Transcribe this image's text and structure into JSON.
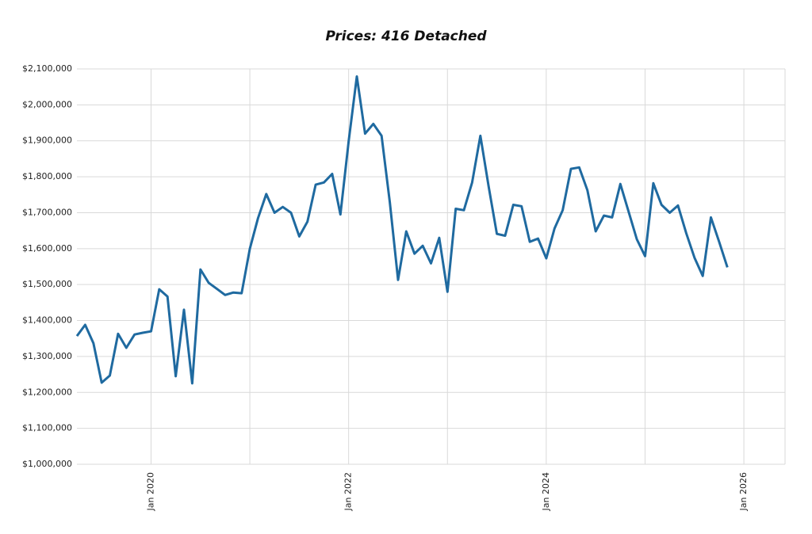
{
  "chart_data": {
    "type": "line",
    "title": "Prices: 416 Detached",
    "x": [
      "2019-04",
      "2019-05",
      "2019-06",
      "2019-07",
      "2019-08",
      "2019-09",
      "2019-10",
      "2019-11",
      "2019-12",
      "2020-01",
      "2020-02",
      "2020-03",
      "2020-04",
      "2020-05",
      "2020-06",
      "2020-07",
      "2020-08",
      "2020-09",
      "2020-10",
      "2020-11",
      "2020-12",
      "2021-01",
      "2021-02",
      "2021-03",
      "2021-04",
      "2021-05",
      "2021-06",
      "2021-07",
      "2021-08",
      "2021-09",
      "2021-10",
      "2021-11",
      "2021-12",
      "2022-01",
      "2022-02",
      "2022-03",
      "2022-04",
      "2022-05",
      "2022-06",
      "2022-07",
      "2022-08",
      "2022-09",
      "2022-10",
      "2022-11",
      "2022-12",
      "2023-01",
      "2023-02",
      "2023-03",
      "2023-04",
      "2023-05",
      "2023-06",
      "2023-07",
      "2023-08",
      "2023-09",
      "2023-10",
      "2023-11",
      "2023-12",
      "2024-01",
      "2024-02",
      "2024-03",
      "2024-04",
      "2024-05",
      "2024-06",
      "2024-07",
      "2024-08",
      "2024-09",
      "2024-10",
      "2024-11",
      "2024-12",
      "2025-01",
      "2025-02",
      "2025-03",
      "2025-04",
      "2025-05",
      "2025-06",
      "2025-07",
      "2025-08",
      "2025-09",
      "2025-10",
      "2025-11"
    ],
    "series": [
      {
        "color": "#1f6aa0",
        "values": [
          1357000,
          1388000,
          1337000,
          1227000,
          1247000,
          1363000,
          1324000,
          1361000,
          1366000,
          1370000,
          1487000,
          1467000,
          1245000,
          1430000,
          1225000,
          1542000,
          1505000,
          1488000,
          1471000,
          1478000,
          1476000,
          1600000,
          1685000,
          1752000,
          1700000,
          1716000,
          1700000,
          1634000,
          1675000,
          1778000,
          1784000,
          1808000,
          1695000,
          1899000,
          2079000,
          1920000,
          1947000,
          1914000,
          1729000,
          1513000,
          1648000,
          1586000,
          1608000,
          1559000,
          1630000,
          1480000,
          1711000,
          1707000,
          1784000,
          1914000,
          1773000,
          1641000,
          1636000,
          1722000,
          1718000,
          1619000,
          1628000,
          1573000,
          1656000,
          1707000,
          1822000,
          1826000,
          1762000,
          1648000,
          1692000,
          1687000,
          1780000,
          1703000,
          1626000,
          1579000,
          1782000,
          1722000,
          1700000,
          1720000,
          1643000,
          1575000,
          1524000,
          1687000,
          1619000,
          1548000
        ]
      }
    ],
    "xlim": [
      "2019-04",
      "2026-06"
    ],
    "xticks": [
      {
        "value": "2020-01",
        "label": "Jan 2020"
      },
      {
        "value": "2022-01",
        "label": "Jan 2022"
      },
      {
        "value": "2024-01",
        "label": "Jan 2024"
      },
      {
        "value": "2026-01",
        "label": "Jan 2026"
      }
    ],
    "x_minor_grid": [
      "2021-01",
      "2023-01",
      "2025-01"
    ],
    "ylim": [
      1000000,
      2100000
    ],
    "yticks": [
      {
        "value": 1000000,
        "label": "$1,000,000"
      },
      {
        "value": 1100000,
        "label": "$1,100,000"
      },
      {
        "value": 1200000,
        "label": "$1,200,000"
      },
      {
        "value": 1300000,
        "label": "$1,300,000"
      },
      {
        "value": 1400000,
        "label": "$1,400,000"
      },
      {
        "value": 1500000,
        "label": "$1,500,000"
      },
      {
        "value": 1600000,
        "label": "$1,600,000"
      },
      {
        "value": 1700000,
        "label": "$1,700,000"
      },
      {
        "value": 1800000,
        "label": "$1,800,000"
      },
      {
        "value": 1900000,
        "label": "$1,900,000"
      },
      {
        "value": 2000000,
        "label": "$2,000,000"
      },
      {
        "value": 2100000,
        "label": "$2,100,000"
      }
    ],
    "grid": true
  }
}
